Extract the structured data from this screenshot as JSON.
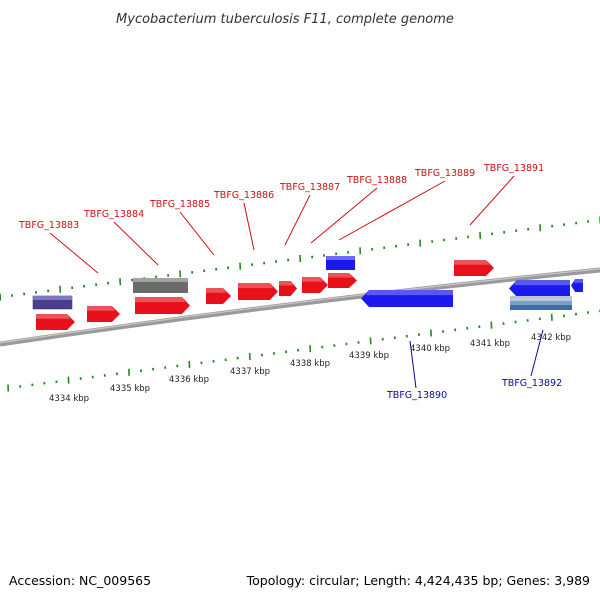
{
  "title": "Mycobacterium tuberculosis F11, complete genome",
  "footer": {
    "accession": "Accession: NC_009565",
    "summary": "Topology: circular; Length: 4,424,435 bp; Genes: 3,989"
  },
  "colors": {
    "forward_gene": "#e8101a",
    "reverse_gene": "#1a1aee",
    "backbone": "#8a8a8a",
    "tick": "#1f8a1f",
    "forward_label": "#cc1111",
    "reverse_label": "#0a0a99",
    "other_feature": "#666666",
    "purple_feature": "#4a3f8f",
    "rna_feature": "#88aacc"
  },
  "scale_labels": [
    "4334 kbp",
    "4335 kbp",
    "4336 kbp",
    "4337 kbp",
    "4338 kbp",
    "4339 kbp",
    "4340 kbp",
    "4341 kbp",
    "4342 kbp"
  ],
  "gene_labels_forward": [
    "TBFG_13883",
    "TBFG_13884",
    "TBFG_13885",
    "TBFG_13886",
    "TBFG_13887",
    "TBFG_13888",
    "TBFG_13889",
    "TBFG_13891"
  ],
  "gene_labels_reverse": [
    "TBFG_13890",
    "TBFG_13892"
  ]
}
